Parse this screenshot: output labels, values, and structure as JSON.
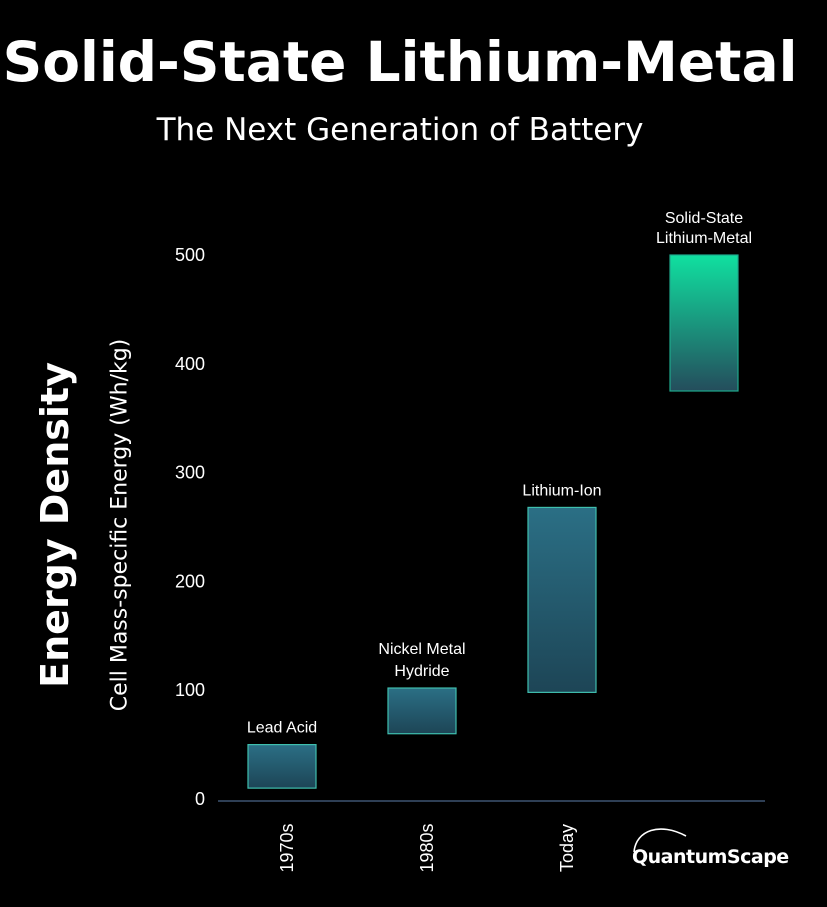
{
  "header": {
    "title": "Solid-State Lithium-Metal",
    "subtitle": "The Next Generation of Battery"
  },
  "brand": {
    "name": "QuantumScape"
  },
  "colors": {
    "background": "#000000",
    "bar_top": "#2b6f85",
    "bar_bottom": "#1d4556",
    "bar_border": "#3fbfae",
    "highlight_top": "#10e0a0",
    "highlight_bottom": "#244d5c",
    "axis": "#2e3f55"
  },
  "chart_data": {
    "type": "bar",
    "subtype": "floating-range",
    "title": "Solid-State Lithium-Metal",
    "subtitle": "The Next Generation of Battery",
    "ylabel": "Energy Density",
    "ylabel_sub": "Cell Mass-specific Energy (Wh/kg)",
    "ylim": [
      0,
      520
    ],
    "yticks": [
      0,
      100,
      200,
      300,
      400,
      500
    ],
    "categories": [
      "1970s",
      "1980s",
      "Today",
      ""
    ],
    "bars": [
      {
        "label": "Lead Acid",
        "low": 10,
        "high": 50
      },
      {
        "label": "Nickel Metal Hydride",
        "low": 60,
        "high": 102
      },
      {
        "label": "Lithium-Ion",
        "low": 98,
        "high": 268
      },
      {
        "label": "Solid-State Lithium-Metal",
        "low": 375,
        "high": 500
      }
    ],
    "grid": false
  }
}
